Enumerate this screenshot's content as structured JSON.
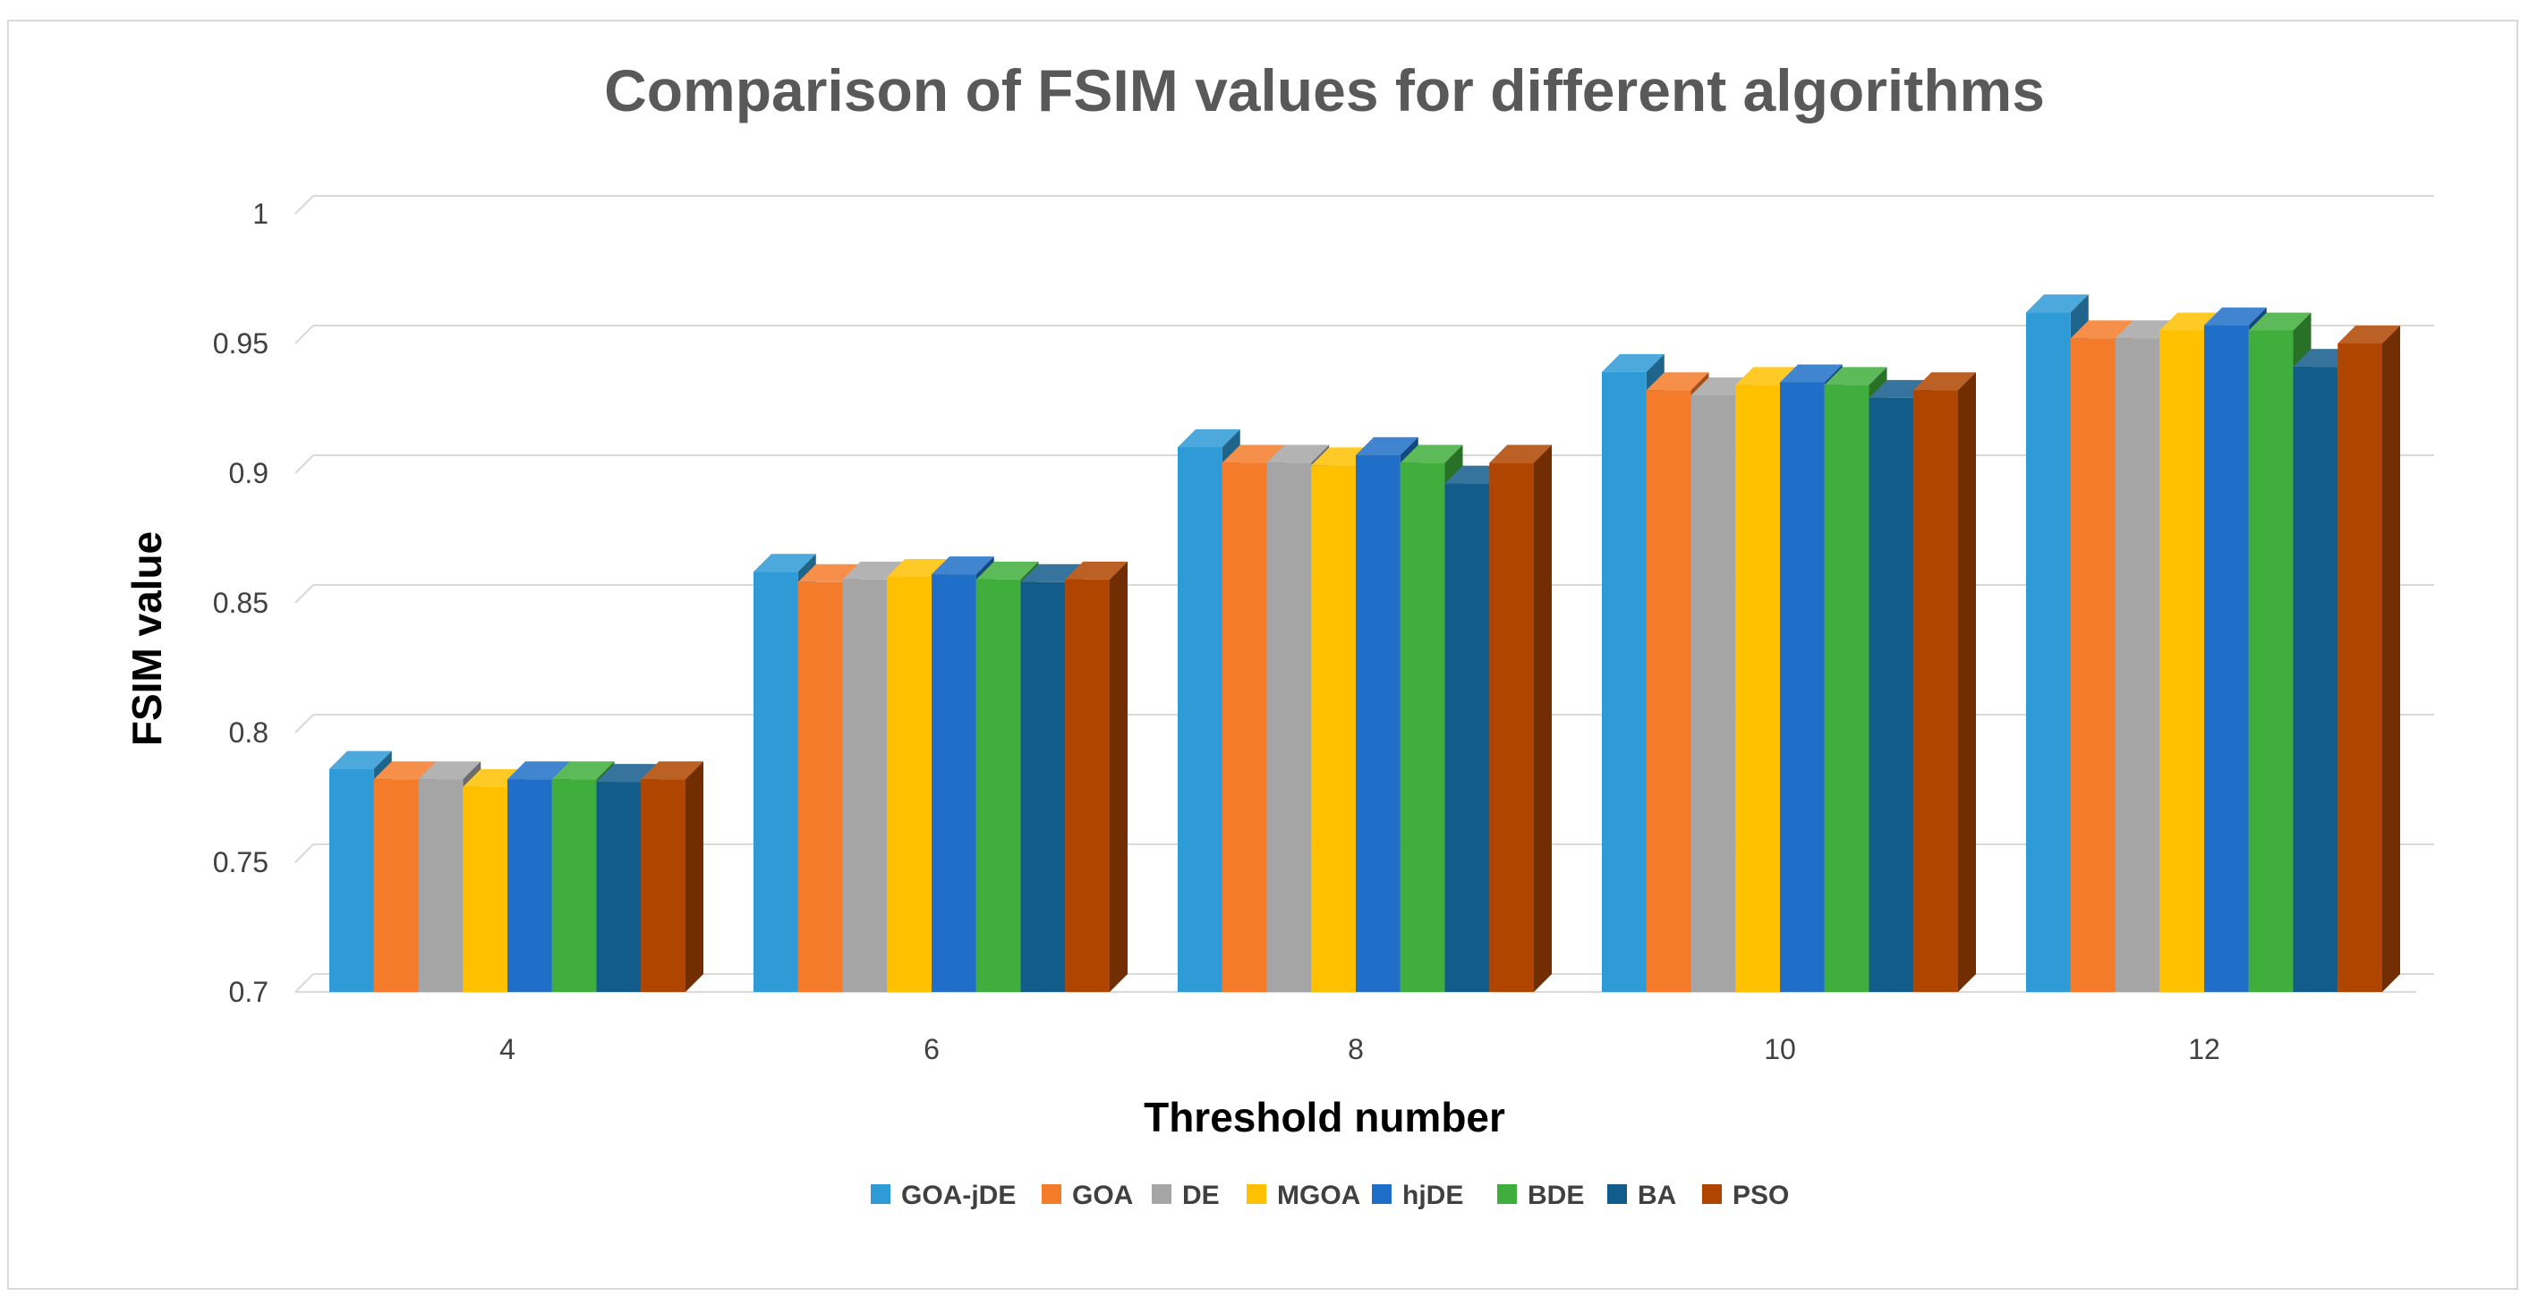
{
  "chart_data": {
    "type": "bar",
    "title": "Comparison of FSIM values for different algorithms",
    "xlabel": "Threshold number",
    "ylabel": "FSIM value",
    "ylim": [
      0.7,
      1
    ],
    "yticks": [
      "0.7",
      "0.75",
      "0.8",
      "0.85",
      "0.9",
      "0.95",
      "1"
    ],
    "categories": [
      "4",
      "6",
      "8",
      "10",
      "12"
    ],
    "grid": true,
    "legend_position": "bottom",
    "series": [
      {
        "name": "GOA-jDE",
        "color": "#2e9ad6",
        "values": [
          0.786,
          0.862,
          0.91,
          0.939,
          0.962
        ]
      },
      {
        "name": "GOA",
        "color": "#f47b2a",
        "values": [
          0.782,
          0.858,
          0.904,
          0.932,
          0.952
        ]
      },
      {
        "name": "DE",
        "color": "#a5a5a5",
        "values": [
          0.782,
          0.859,
          0.904,
          0.93,
          0.952
        ]
      },
      {
        "name": "MGOA",
        "color": "#ffc000",
        "values": [
          0.779,
          0.86,
          0.903,
          0.934,
          0.955
        ]
      },
      {
        "name": "hjDE",
        "color": "#1f6fc8",
        "values": [
          0.782,
          0.861,
          0.907,
          0.935,
          0.957
        ]
      },
      {
        "name": "BDE",
        "color": "#3fae3c",
        "values": [
          0.782,
          0.859,
          0.904,
          0.934,
          0.955
        ]
      },
      {
        "name": "BA",
        "color": "#125c8c",
        "values": [
          0.781,
          0.858,
          0.896,
          0.929,
          0.941
        ]
      },
      {
        "name": "PSO",
        "color": "#b04500",
        "values": [
          0.782,
          0.859,
          0.904,
          0.932,
          0.95
        ]
      }
    ]
  }
}
